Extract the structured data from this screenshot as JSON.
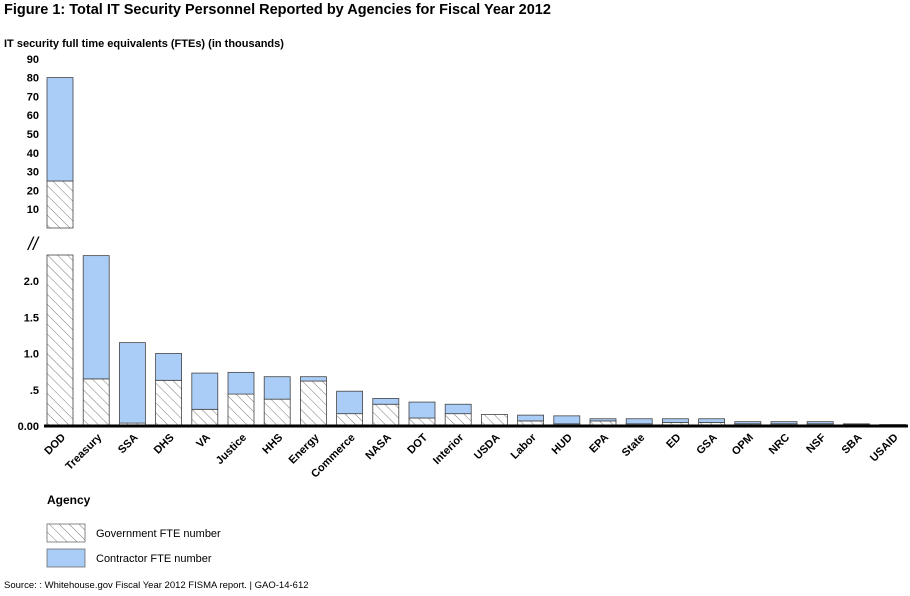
{
  "figure_title": "Figure 1: Total IT Security Personnel Reported by Agencies for Fiscal Year 2012",
  "source": "Source: : Whitehouse.gov Fiscal Year 2012 FISMA report.  |  GAO-14-612",
  "colors": {
    "contractor": "#a9cdf7",
    "hatch": "#6b6b6b",
    "axis": "#000000"
  },
  "chart_data": {
    "type": "bar",
    "stacked": true,
    "broken_axis": true,
    "title": "Figure 1: Total IT Security Personnel Reported by Agencies for Fiscal Year 2012",
    "ylabel": "IT security full time equivalents (FTEs) (in thousands)",
    "xlabel": "Agency",
    "y_ticks_lower": [
      "0.00",
      ".5",
      "1.0",
      "1.5",
      "2.0"
    ],
    "y_ticks_upper": [
      "10",
      "20",
      "30",
      "40",
      "50",
      "60",
      "70",
      "80",
      "90"
    ],
    "categories": [
      "DOD",
      "Treasury",
      "SSA",
      "DHS",
      "VA",
      "Justice",
      "HHS",
      "Energy",
      "Commerce",
      "NASA",
      "DOT",
      "Interior",
      "USDA",
      "Labor",
      "HUD",
      "EPA",
      "State",
      "ED",
      "GSA",
      "OPM",
      "NRC",
      "NSF",
      "SBA",
      "USAID"
    ],
    "series": [
      {
        "name": "Government FTE number",
        "values": [
          25,
          0.65,
          0.04,
          0.63,
          0.23,
          0.44,
          0.37,
          0.62,
          0.17,
          0.3,
          0.11,
          0.17,
          0.16,
          0.07,
          0.03,
          0.07,
          0.03,
          0.05,
          0.05,
          0.03,
          0.03,
          0.03,
          0.02,
          0.02
        ]
      },
      {
        "name": "Contractor FTE number",
        "values": [
          55,
          1.7,
          1.11,
          0.37,
          0.5,
          0.3,
          0.31,
          0.06,
          0.31,
          0.08,
          0.22,
          0.13,
          0.0,
          0.08,
          0.11,
          0.03,
          0.07,
          0.05,
          0.05,
          0.03,
          0.03,
          0.03,
          0.01,
          0.0
        ]
      }
    ],
    "legend_position": "bottom-left",
    "grid": false
  },
  "axis_break_symbol": "//"
}
